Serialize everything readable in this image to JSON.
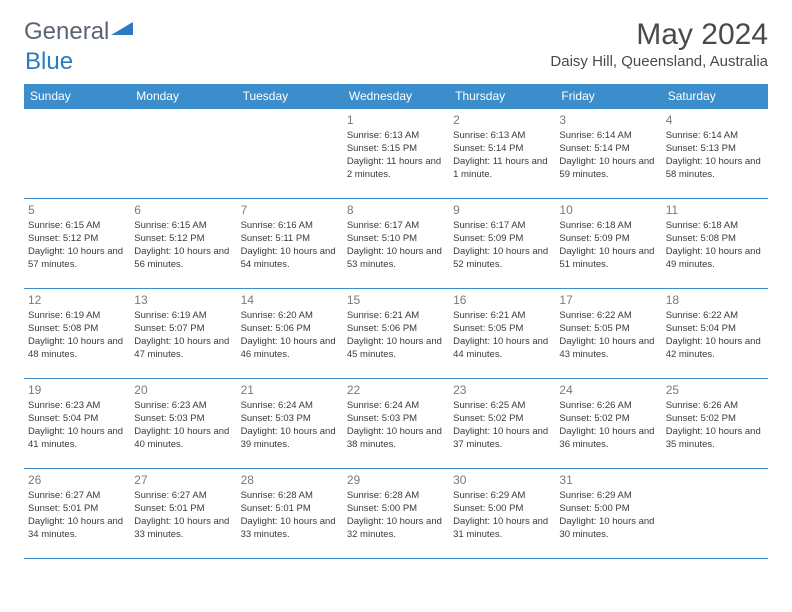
{
  "brand": {
    "name1": "General",
    "name2": "Blue"
  },
  "title": "May 2024",
  "location": "Daisy Hill, Queensland, Australia",
  "colors": {
    "header_bg": "#3c8dcc",
    "header_text": "#ffffff",
    "border": "#3c8dcc",
    "daynum": "#7a7a7a",
    "body_text": "#3a3a3a",
    "brand_gray": "#5a6570",
    "brand_blue": "#2a7bc0"
  },
  "weekdays": [
    "Sunday",
    "Monday",
    "Tuesday",
    "Wednesday",
    "Thursday",
    "Friday",
    "Saturday"
  ],
  "weeks": [
    [
      {},
      {},
      {},
      {
        "n": "1",
        "sr": "Sunrise: 6:13 AM",
        "ss": "Sunset: 5:15 PM",
        "dl": "Daylight: 11 hours and 2 minutes."
      },
      {
        "n": "2",
        "sr": "Sunrise: 6:13 AM",
        "ss": "Sunset: 5:14 PM",
        "dl": "Daylight: 11 hours and 1 minute."
      },
      {
        "n": "3",
        "sr": "Sunrise: 6:14 AM",
        "ss": "Sunset: 5:14 PM",
        "dl": "Daylight: 10 hours and 59 minutes."
      },
      {
        "n": "4",
        "sr": "Sunrise: 6:14 AM",
        "ss": "Sunset: 5:13 PM",
        "dl": "Daylight: 10 hours and 58 minutes."
      }
    ],
    [
      {
        "n": "5",
        "sr": "Sunrise: 6:15 AM",
        "ss": "Sunset: 5:12 PM",
        "dl": "Daylight: 10 hours and 57 minutes."
      },
      {
        "n": "6",
        "sr": "Sunrise: 6:15 AM",
        "ss": "Sunset: 5:12 PM",
        "dl": "Daylight: 10 hours and 56 minutes."
      },
      {
        "n": "7",
        "sr": "Sunrise: 6:16 AM",
        "ss": "Sunset: 5:11 PM",
        "dl": "Daylight: 10 hours and 54 minutes."
      },
      {
        "n": "8",
        "sr": "Sunrise: 6:17 AM",
        "ss": "Sunset: 5:10 PM",
        "dl": "Daylight: 10 hours and 53 minutes."
      },
      {
        "n": "9",
        "sr": "Sunrise: 6:17 AM",
        "ss": "Sunset: 5:09 PM",
        "dl": "Daylight: 10 hours and 52 minutes."
      },
      {
        "n": "10",
        "sr": "Sunrise: 6:18 AM",
        "ss": "Sunset: 5:09 PM",
        "dl": "Daylight: 10 hours and 51 minutes."
      },
      {
        "n": "11",
        "sr": "Sunrise: 6:18 AM",
        "ss": "Sunset: 5:08 PM",
        "dl": "Daylight: 10 hours and 49 minutes."
      }
    ],
    [
      {
        "n": "12",
        "sr": "Sunrise: 6:19 AM",
        "ss": "Sunset: 5:08 PM",
        "dl": "Daylight: 10 hours and 48 minutes."
      },
      {
        "n": "13",
        "sr": "Sunrise: 6:19 AM",
        "ss": "Sunset: 5:07 PM",
        "dl": "Daylight: 10 hours and 47 minutes."
      },
      {
        "n": "14",
        "sr": "Sunrise: 6:20 AM",
        "ss": "Sunset: 5:06 PM",
        "dl": "Daylight: 10 hours and 46 minutes."
      },
      {
        "n": "15",
        "sr": "Sunrise: 6:21 AM",
        "ss": "Sunset: 5:06 PM",
        "dl": "Daylight: 10 hours and 45 minutes."
      },
      {
        "n": "16",
        "sr": "Sunrise: 6:21 AM",
        "ss": "Sunset: 5:05 PM",
        "dl": "Daylight: 10 hours and 44 minutes."
      },
      {
        "n": "17",
        "sr": "Sunrise: 6:22 AM",
        "ss": "Sunset: 5:05 PM",
        "dl": "Daylight: 10 hours and 43 minutes."
      },
      {
        "n": "18",
        "sr": "Sunrise: 6:22 AM",
        "ss": "Sunset: 5:04 PM",
        "dl": "Daylight: 10 hours and 42 minutes."
      }
    ],
    [
      {
        "n": "19",
        "sr": "Sunrise: 6:23 AM",
        "ss": "Sunset: 5:04 PM",
        "dl": "Daylight: 10 hours and 41 minutes."
      },
      {
        "n": "20",
        "sr": "Sunrise: 6:23 AM",
        "ss": "Sunset: 5:03 PM",
        "dl": "Daylight: 10 hours and 40 minutes."
      },
      {
        "n": "21",
        "sr": "Sunrise: 6:24 AM",
        "ss": "Sunset: 5:03 PM",
        "dl": "Daylight: 10 hours and 39 minutes."
      },
      {
        "n": "22",
        "sr": "Sunrise: 6:24 AM",
        "ss": "Sunset: 5:03 PM",
        "dl": "Daylight: 10 hours and 38 minutes."
      },
      {
        "n": "23",
        "sr": "Sunrise: 6:25 AM",
        "ss": "Sunset: 5:02 PM",
        "dl": "Daylight: 10 hours and 37 minutes."
      },
      {
        "n": "24",
        "sr": "Sunrise: 6:26 AM",
        "ss": "Sunset: 5:02 PM",
        "dl": "Daylight: 10 hours and 36 minutes."
      },
      {
        "n": "25",
        "sr": "Sunrise: 6:26 AM",
        "ss": "Sunset: 5:02 PM",
        "dl": "Daylight: 10 hours and 35 minutes."
      }
    ],
    [
      {
        "n": "26",
        "sr": "Sunrise: 6:27 AM",
        "ss": "Sunset: 5:01 PM",
        "dl": "Daylight: 10 hours and 34 minutes."
      },
      {
        "n": "27",
        "sr": "Sunrise: 6:27 AM",
        "ss": "Sunset: 5:01 PM",
        "dl": "Daylight: 10 hours and 33 minutes."
      },
      {
        "n": "28",
        "sr": "Sunrise: 6:28 AM",
        "ss": "Sunset: 5:01 PM",
        "dl": "Daylight: 10 hours and 33 minutes."
      },
      {
        "n": "29",
        "sr": "Sunrise: 6:28 AM",
        "ss": "Sunset: 5:00 PM",
        "dl": "Daylight: 10 hours and 32 minutes."
      },
      {
        "n": "30",
        "sr": "Sunrise: 6:29 AM",
        "ss": "Sunset: 5:00 PM",
        "dl": "Daylight: 10 hours and 31 minutes."
      },
      {
        "n": "31",
        "sr": "Sunrise: 6:29 AM",
        "ss": "Sunset: 5:00 PM",
        "dl": "Daylight: 10 hours and 30 minutes."
      },
      {}
    ]
  ]
}
